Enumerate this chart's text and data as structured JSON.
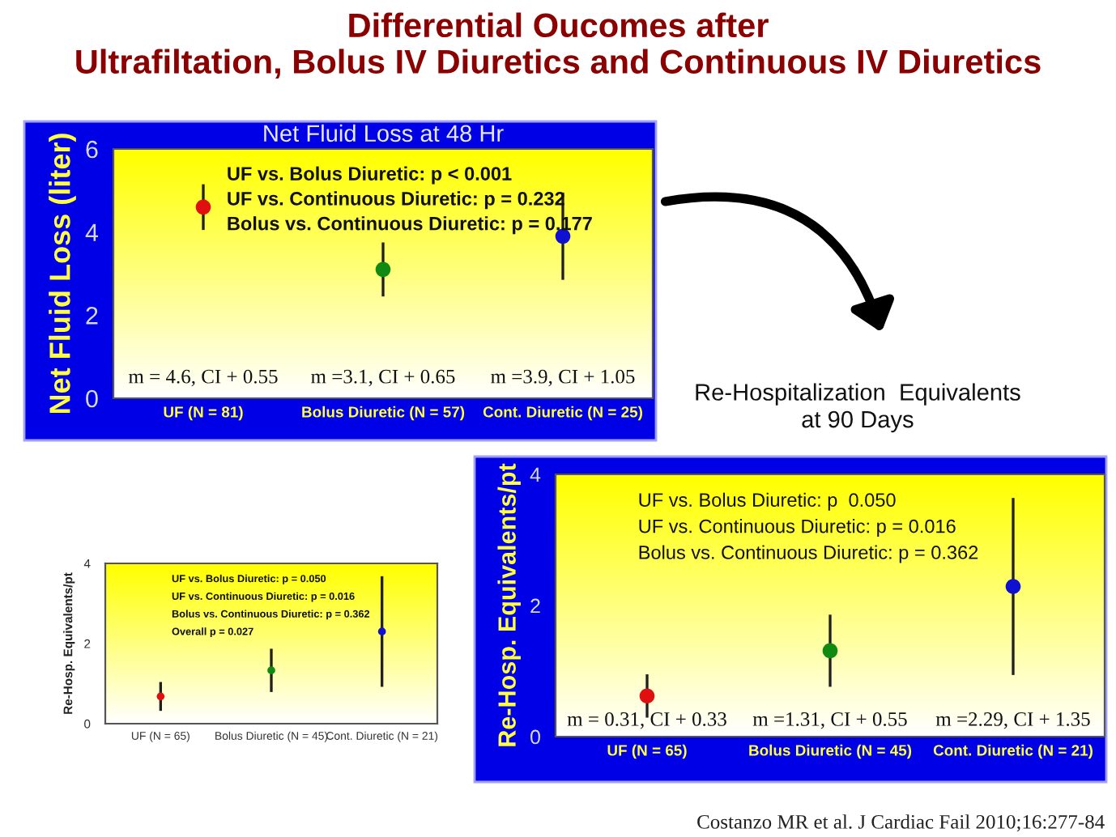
{
  "chart_data": [
    {
      "type": "scatter",
      "title": "Differential Oucomes after\nUltrafiltation, Bolus IV Diuretics and Continuous IV Diuretics",
      "subtitle": "Net Fluid Loss at 48 Hr",
      "ylabel": "Net Fluid Loss (liter)",
      "categories": [
        "UF (N = 81)",
        "Bolus Diuretic (N = 57)",
        "Cont. Diuretic (N = 25)"
      ],
      "values": [
        4.6,
        3.1,
        3.9
      ],
      "errors": [
        0.55,
        0.65,
        1.05
      ],
      "colors": [
        "#e01010",
        "#108a10",
        "#1010d0"
      ],
      "ylim": [
        0,
        6
      ],
      "yticks": [
        0,
        2,
        4,
        6
      ],
      "marker": "circle",
      "grid": false,
      "legend": false,
      "annotations": [
        "UF vs. Bolus Diuretic: p < 0.001",
        "UF vs. Continuous Diuretic: p = 0.232",
        "Bolus vs. Continuous Diuretic: p = 0.177",
        "m = 4.6, CI + 0.55",
        "m =3.1, CI + 0.65",
        "m =3.9, CI + 1.05"
      ]
    },
    {
      "type": "scatter",
      "title": "Re-Hospitalization  Equivalents\nat 90 Days",
      "ylabel": "Re-Hosp. Equivalents/pt",
      "categories": [
        "UF (N = 65)",
        "Bolus Diuretic (N = 45)",
        "Cont. Diuretic (N = 21)"
      ],
      "values": [
        0.62,
        1.31,
        2.29
      ],
      "errors": [
        0.33,
        0.55,
        1.35
      ],
      "colors": [
        "#e01010",
        "#108a10",
        "#1010d0"
      ],
      "ylim": [
        0,
        4
      ],
      "yticks": [
        0,
        2,
        4
      ],
      "marker": "circle",
      "grid": false,
      "legend": false,
      "annotations": [
        "UF vs. Bolus Diuretic: p  0.050",
        "UF vs. Continuous Diuretic: p = 0.016",
        "Bolus vs. Continuous Diuretic: p = 0.362",
        "m = 0.31, CI + 0.33",
        "m =1.31, CI + 0.55",
        "m =2.29, CI + 1.35",
        "Costanzo MR et al. J Cardiac Fail 2010;16:277-84"
      ]
    },
    {
      "type": "scatter",
      "ylabel": "Re-Hosp. Equivalents/pt",
      "categories": [
        "UF (N = 65)",
        "Bolus Diuretic (N = 45)",
        "Cont. Diuretic (N = 21)"
      ],
      "values": [
        0.68,
        1.33,
        2.3
      ],
      "errors": [
        0.36,
        0.54,
        1.38
      ],
      "colors": [
        "#e01010",
        "#108a10",
        "#1010d0"
      ],
      "ylim": [
        0,
        4
      ],
      "yticks": [
        0,
        2,
        4
      ],
      "marker": "circle",
      "grid": false,
      "legend": false,
      "annotations": [
        "UF vs. Bolus Diuretic: p = 0.050",
        "UF vs. Continuous Diuretic: p = 0.016",
        "Bolus vs. Continuous Diuretic: p = 0.362",
        "Overall p = 0.027"
      ]
    }
  ]
}
